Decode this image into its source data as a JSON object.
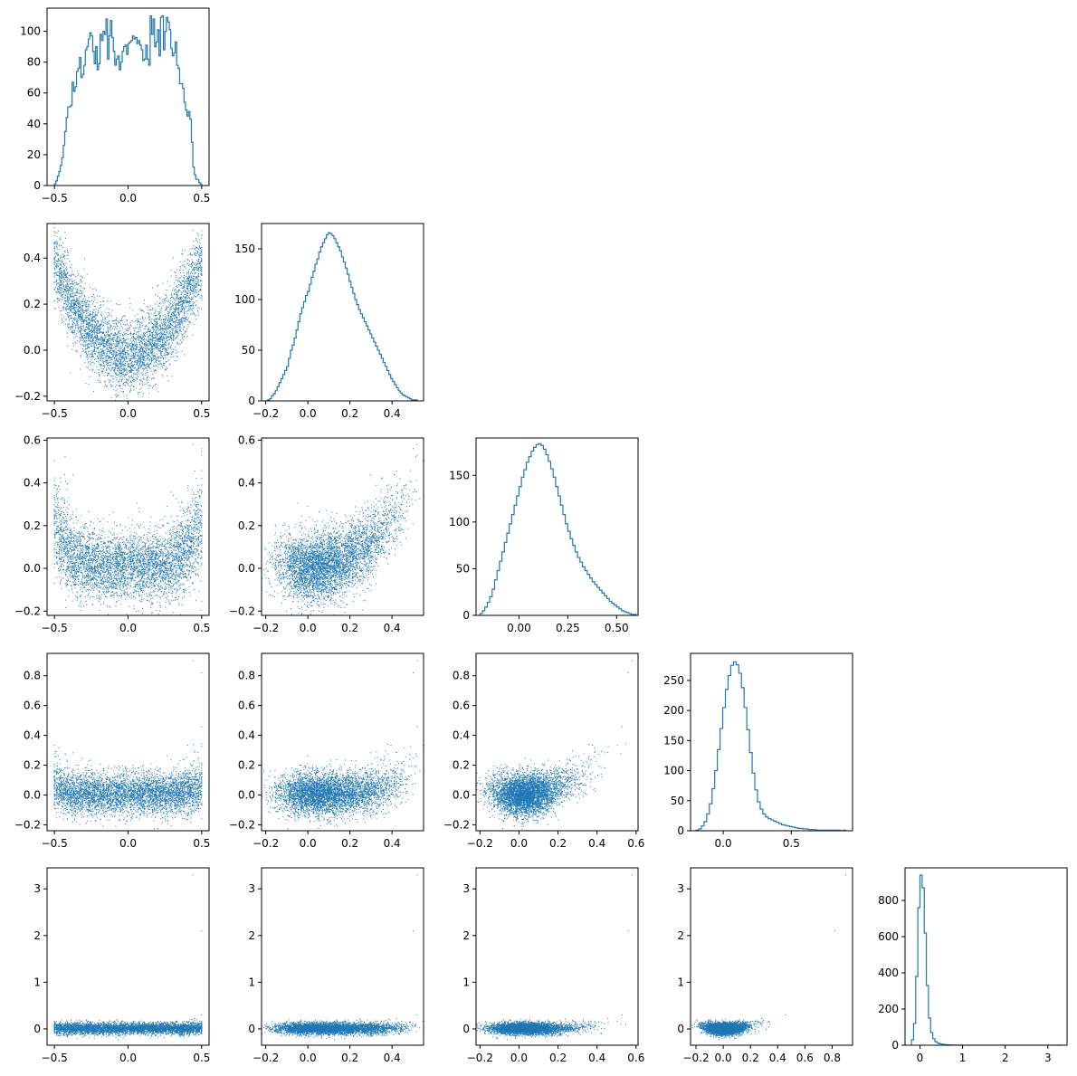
{
  "colors": {
    "series": "#1f77b4",
    "axes": "#000000",
    "background": "#ffffff"
  },
  "chart_data": {
    "type": "corner-plot",
    "grid": false,
    "n_dims": 5,
    "dims": [
      {
        "range": [
          -0.55,
          0.55
        ],
        "ticks": [
          -0.5,
          0.0,
          0.5
        ],
        "tick_labels": [
          "−0.5",
          "0.0",
          "0.5"
        ],
        "center": 0.0,
        "spread": 0.28,
        "shape": "flat"
      },
      {
        "range": [
          -0.22,
          0.55
        ],
        "ticks": [
          -0.2,
          0.0,
          0.2,
          0.4
        ],
        "tick_labels": [
          "−0.2",
          "0.0",
          "0.2",
          "0.4"
        ],
        "center": 0.12,
        "spread": 0.13,
        "shape": "normal"
      },
      {
        "range": [
          -0.22,
          0.61
        ],
        "ticks": [
          -0.2,
          0.0,
          0.2,
          0.4,
          0.6
        ],
        "tick_labels": [
          "−0.2",
          "0.0",
          "0.2",
          "0.4",
          "0.6"
        ],
        "ticks_diag": [
          0.0,
          0.25,
          0.5
        ],
        "tick_labels_diag": [
          "0.00",
          "0.25",
          "0.50"
        ],
        "center": 0.08,
        "spread": 0.11,
        "shape": "skew"
      },
      {
        "range": [
          -0.24,
          0.95
        ],
        "ticks": [
          -0.2,
          0.0,
          0.2,
          0.4,
          0.6,
          0.8
        ],
        "tick_labels": [
          "−0.2",
          "0.0",
          "0.2",
          "0.4",
          "0.6",
          "0.8"
        ],
        "ticks_diag": [
          0.0,
          0.5
        ],
        "tick_labels_diag": [
          "0.0",
          "0.5"
        ],
        "center": 0.05,
        "spread": 0.08,
        "shape": "skew"
      },
      {
        "range": [
          -0.35,
          3.45
        ],
        "ticks": [
          0,
          1,
          2,
          3
        ],
        "tick_labels": [
          "0",
          "1",
          "2",
          "3"
        ],
        "center": 0.05,
        "spread": 0.05,
        "shape": "skew"
      }
    ],
    "histograms": [
      {
        "dim": 0,
        "ylim": [
          0,
          115
        ],
        "yticks": [
          0,
          20,
          40,
          60,
          80,
          100
        ],
        "ytick_labels": [
          "0",
          "20",
          "40",
          "60",
          "80",
          "100"
        ],
        "bins_range": [
          -0.5,
          0.5
        ],
        "counts": [
          1,
          3,
          6,
          9,
          13,
          18,
          26,
          35,
          44,
          51,
          51,
          52,
          67,
          61,
          64,
          74,
          76,
          83,
          70,
          72,
          78,
          88,
          90,
          95,
          99,
          97,
          87,
          79,
          90,
          75,
          79,
          98,
          94,
          100,
          98,
          108,
          82,
          97,
          107,
          96,
          87,
          78,
          82,
          84,
          75,
          80,
          87,
          90,
          91,
          85,
          92,
          93,
          94,
          97,
          95,
          96,
          92,
          94,
          91,
          88,
          81,
          82,
          91,
          82,
          78,
          110,
          98,
          108,
          90,
          93,
          101,
          84,
          109,
          110,
          88,
          100,
          109,
          106,
          101,
          89,
          84,
          86,
          93,
          78,
          76,
          66,
          66,
          63,
          54,
          49,
          45,
          48,
          43,
          28,
          12,
          7,
          4,
          4,
          2,
          1
        ]
      },
      {
        "dim": 1,
        "ylim": [
          0,
          175
        ],
        "yticks": [
          0,
          50,
          100,
          150
        ],
        "ytick_labels": [
          "0",
          "50",
          "100",
          "150"
        ],
        "bins_range": [
          -0.2,
          0.52
        ],
        "counts": [
          0,
          1,
          2,
          5,
          7,
          10,
          14,
          18,
          22,
          26,
          30,
          34,
          42,
          50,
          55,
          62,
          70,
          78,
          86,
          92,
          98,
          104,
          108,
          115,
          122,
          128,
          135,
          140,
          147,
          152,
          156,
          160,
          164,
          166,
          165,
          163,
          160,
          156,
          152,
          148,
          142,
          137,
          131,
          125,
          118,
          112,
          106,
          100,
          95,
          90,
          86,
          82,
          78,
          74,
          70,
          66,
          62,
          58,
          54,
          50,
          46,
          42,
          38,
          34,
          30,
          26,
          22,
          19,
          16,
          13,
          10,
          8,
          6,
          5,
          4,
          3,
          2,
          1,
          1,
          1
        ]
      },
      {
        "dim": 2,
        "ylim": [
          0,
          190
        ],
        "yticks": [
          0,
          50,
          100,
          150
        ],
        "ytick_labels": [
          "0",
          "50",
          "100",
          "150"
        ],
        "bins_range": [
          -0.2,
          0.6
        ],
        "counts": [
          2,
          5,
          9,
          14,
          20,
          28,
          38,
          48,
          58,
          68,
          78,
          88,
          98,
          108,
          118,
          128,
          138,
          148,
          156,
          164,
          170,
          176,
          180,
          183,
          184,
          182,
          178,
          172,
          165,
          157,
          148,
          138,
          128,
          118,
          108,
          98,
          90,
          82,
          75,
          68,
          62,
          57,
          52,
          48,
          44,
          40,
          36,
          33,
          30,
          27,
          24,
          21,
          18,
          15,
          13,
          11,
          9,
          7,
          5,
          4,
          3,
          2,
          1,
          1
        ]
      },
      {
        "dim": 3,
        "ylim": [
          0,
          295
        ],
        "yticks": [
          0,
          50,
          100,
          150,
          200,
          250
        ],
        "ytick_labels": [
          "0",
          "50",
          "100",
          "150",
          "200",
          "250"
        ],
        "bins_range": [
          -0.2,
          0.9
        ],
        "counts": [
          1,
          3,
          8,
          15,
          28,
          45,
          70,
          100,
          135,
          170,
          205,
          235,
          258,
          275,
          281,
          276,
          262,
          238,
          205,
          168,
          130,
          96,
          68,
          48,
          36,
          28,
          23,
          20,
          18,
          16,
          14,
          12,
          10,
          9,
          8,
          7,
          6,
          5,
          4,
          4,
          3,
          3,
          2,
          2,
          2,
          1,
          1,
          1,
          1,
          1,
          1,
          1,
          1,
          1,
          0,
          1
        ]
      },
      {
        "dim": 4,
        "ylim": [
          0,
          980
        ],
        "yticks": [
          0,
          200,
          400,
          600,
          800
        ],
        "ytick_labels": [
          "0",
          "200",
          "400",
          "600",
          "800"
        ],
        "bins_range": [
          -0.2,
          3.3
        ],
        "counts": [
          30,
          120,
          380,
          760,
          940,
          870,
          620,
          330,
          150,
          70,
          36,
          20,
          12,
          8,
          6,
          4,
          3,
          2,
          2,
          1,
          1,
          1,
          1,
          1,
          0,
          0,
          0,
          0,
          0,
          0,
          0,
          0,
          0,
          0,
          0,
          0,
          0,
          0,
          0,
          0,
          0,
          0,
          0,
          0,
          0,
          0,
          0,
          0,
          0,
          0,
          0,
          0,
          0,
          0,
          0,
          0,
          0,
          0,
          0,
          0,
          0,
          0,
          0,
          0,
          0,
          0,
          0,
          0,
          0,
          1
        ]
      }
    ]
  }
}
